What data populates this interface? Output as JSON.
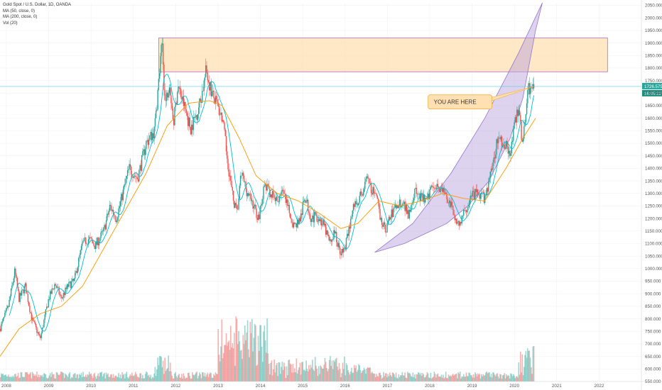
{
  "legend": {
    "title": "Gold Spot / U.S. Dollar, 1D, OANDA",
    "ma50": "MA (50, close, 0)",
    "ma200": "MA (200, close, 0)",
    "vol": "Vol (20)"
  },
  "annotation": "YOU ARE HERE",
  "price_tag": "1726.575",
  "time_tag": "16:05:22",
  "colors": {
    "up": "#26a69a",
    "down": "#ef5350",
    "ma50": "#00bcd4",
    "ma200": "#ff9800",
    "zone_fill": "#ffe0b2",
    "zone_stroke": "#ba68c8",
    "curve_fill": "#b39ddb",
    "price_line": "#4dd0e1",
    "callout_fill": "#ffe0b2",
    "callout_stroke": "#f5b041"
  },
  "chart_data": {
    "type": "candlestick",
    "x_ticks": [
      "2008",
      "2009",
      "2010",
      "2011",
      "2012",
      "2013",
      "2014",
      "2015",
      "2016",
      "2017",
      "2018",
      "2019",
      "2020",
      "2021",
      "2022"
    ],
    "y_ticks": [
      "550.000",
      "600.000",
      "650.000",
      "700.000",
      "750.000",
      "800.000",
      "850.000",
      "900.000",
      "950.000",
      "1000.000",
      "1050.000",
      "1100.000",
      "1150.000",
      "1200.000",
      "1250.000",
      "1300.000",
      "1350.000",
      "1400.000",
      "1450.000",
      "1500.000",
      "1550.000",
      "1600.000",
      "1650.000",
      "1700.000",
      "1750.000",
      "1800.000",
      "1850.000",
      "1900.000",
      "1950.000",
      "2000.000",
      "2050.000"
    ],
    "ylim": [
      550,
      2060
    ],
    "xlim": [
      2007.85,
      2023.0
    ],
    "price_path": [
      [
        2007.85,
        760
      ],
      [
        2008.05,
        850
      ],
      [
        2008.2,
        990
      ],
      [
        2008.3,
        880
      ],
      [
        2008.45,
        930
      ],
      [
        2008.6,
        800
      ],
      [
        2008.8,
        720
      ],
      [
        2008.85,
        760
      ],
      [
        2009.0,
        880
      ],
      [
        2009.15,
        940
      ],
      [
        2009.3,
        880
      ],
      [
        2009.45,
        930
      ],
      [
        2009.6,
        950
      ],
      [
        2009.8,
        1100
      ],
      [
        2009.95,
        1120
      ],
      [
        2010.1,
        1090
      ],
      [
        2010.3,
        1150
      ],
      [
        2010.45,
        1250
      ],
      [
        2010.6,
        1200
      ],
      [
        2010.75,
        1300
      ],
      [
        2010.9,
        1400
      ],
      [
        2011.1,
        1360
      ],
      [
        2011.3,
        1500
      ],
      [
        2011.5,
        1550
      ],
      [
        2011.6,
        1750
      ],
      [
        2011.68,
        1900
      ],
      [
        2011.75,
        1650
      ],
      [
        2011.85,
        1750
      ],
      [
        2011.95,
        1580
      ],
      [
        2012.05,
        1730
      ],
      [
        2012.2,
        1650
      ],
      [
        2012.35,
        1560
      ],
      [
        2012.5,
        1620
      ],
      [
        2012.6,
        1680
      ],
      [
        2012.72,
        1790
      ],
      [
        2012.85,
        1700
      ],
      [
        2012.95,
        1660
      ],
      [
        2013.1,
        1600
      ],
      [
        2013.25,
        1400
      ],
      [
        2013.35,
        1280
      ],
      [
        2013.45,
        1220
      ],
      [
        2013.55,
        1380
      ],
      [
        2013.7,
        1300
      ],
      [
        2013.85,
        1250
      ],
      [
        2013.95,
        1200
      ],
      [
        2014.1,
        1330
      ],
      [
        2014.25,
        1300
      ],
      [
        2014.4,
        1260
      ],
      [
        2014.5,
        1320
      ],
      [
        2014.65,
        1240
      ],
      [
        2014.8,
        1170
      ],
      [
        2014.95,
        1200
      ],
      [
        2015.05,
        1290
      ],
      [
        2015.2,
        1200
      ],
      [
        2015.35,
        1210
      ],
      [
        2015.5,
        1170
      ],
      [
        2015.65,
        1100
      ],
      [
        2015.75,
        1150
      ],
      [
        2015.85,
        1080
      ],
      [
        2015.95,
        1060
      ],
      [
        2016.05,
        1120
      ],
      [
        2016.2,
        1250
      ],
      [
        2016.35,
        1280
      ],
      [
        2016.5,
        1350
      ],
      [
        2016.6,
        1330
      ],
      [
        2016.75,
        1270
      ],
      [
        2016.85,
        1200
      ],
      [
        2016.95,
        1150
      ],
      [
        2017.05,
        1200
      ],
      [
        2017.2,
        1250
      ],
      [
        2017.35,
        1270
      ],
      [
        2017.5,
        1220
      ],
      [
        2017.65,
        1310
      ],
      [
        2017.8,
        1280
      ],
      [
        2017.95,
        1270
      ],
      [
        2018.05,
        1340
      ],
      [
        2018.2,
        1330
      ],
      [
        2018.35,
        1300
      ],
      [
        2018.5,
        1250
      ],
      [
        2018.6,
        1200
      ],
      [
        2018.7,
        1180
      ],
      [
        2018.85,
        1230
      ],
      [
        2018.95,
        1280
      ],
      [
        2019.1,
        1300
      ],
      [
        2019.3,
        1280
      ],
      [
        2019.45,
        1380
      ],
      [
        2019.6,
        1520
      ],
      [
        2019.75,
        1500
      ],
      [
        2019.9,
        1470
      ],
      [
        2020.0,
        1560
      ],
      [
        2020.1,
        1650
      ],
      [
        2020.2,
        1480
      ],
      [
        2020.3,
        1700
      ],
      [
        2020.4,
        1740
      ],
      [
        2020.48,
        1726
      ]
    ],
    "ma200_path": [
      [
        2007.85,
        650
      ],
      [
        2008.3,
        760
      ],
      [
        2008.8,
        820
      ],
      [
        2009.3,
        850
      ],
      [
        2009.8,
        930
      ],
      [
        2010.3,
        1080
      ],
      [
        2010.8,
        1230
      ],
      [
        2011.3,
        1380
      ],
      [
        2011.8,
        1570
      ],
      [
        2012.3,
        1660
      ],
      [
        2012.8,
        1670
      ],
      [
        2013.1,
        1650
      ],
      [
        2013.5,
        1520
      ],
      [
        2013.9,
        1370
      ],
      [
        2014.4,
        1300
      ],
      [
        2014.9,
        1270
      ],
      [
        2015.4,
        1220
      ],
      [
        2015.9,
        1160
      ],
      [
        2016.3,
        1180
      ],
      [
        2016.8,
        1270
      ],
      [
        2017.3,
        1250
      ],
      [
        2017.8,
        1270
      ],
      [
        2018.3,
        1300
      ],
      [
        2018.8,
        1280
      ],
      [
        2019.3,
        1270
      ],
      [
        2019.8,
        1400
      ],
      [
        2020.2,
        1520
      ],
      [
        2020.5,
        1600
      ]
    ],
    "resistance_zone": {
      "x": [
        2011.6,
        2022.2
      ],
      "y": [
        1785,
        1920
      ]
    },
    "curve_polygon": [
      [
        2016.7,
        1065
      ],
      [
        2017.4,
        1100
      ],
      [
        2017.9,
        1140
      ],
      [
        2018.4,
        1180
      ],
      [
        2018.9,
        1250
      ],
      [
        2019.4,
        1350
      ],
      [
        2019.9,
        1520
      ],
      [
        2020.2,
        1680
      ],
      [
        2020.5,
        1950
      ],
      [
        2020.66,
        2060
      ],
      [
        2020.1,
        1860
      ],
      [
        2019.3,
        1600
      ],
      [
        2018.5,
        1380
      ],
      [
        2017.6,
        1180
      ]
    ],
    "last_price": 1726.575,
    "callout": {
      "x": 2018.8,
      "y": 1665,
      "target": [
        2020.45,
        1726
      ]
    }
  }
}
